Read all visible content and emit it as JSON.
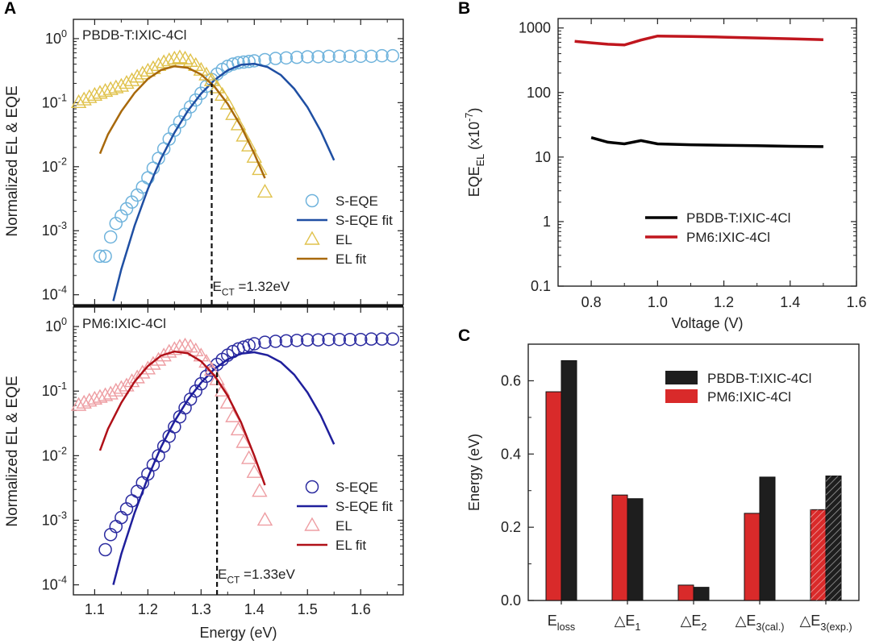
{
  "chart_data": [
    {
      "panel": "A (top)",
      "panel_letter": "A",
      "type": "scatter",
      "title": "PBDB-T:IXIC-4Cl",
      "xlabel": "",
      "ylabel": "Normalized EL & EQE",
      "yscale": "log",
      "xlim": [
        1.06,
        1.68
      ],
      "ylim": [
        7e-05,
        2
      ],
      "yticks": [
        0.0001,
        0.001,
        0.01,
        0.1,
        1
      ],
      "ytick_labels": [
        [
          "10",
          "-4"
        ],
        [
          "10",
          "-3"
        ],
        [
          "10",
          "-2"
        ],
        [
          "10",
          "-1"
        ],
        [
          "10",
          "0"
        ]
      ],
      "ect_value": 1.32,
      "ect_label": [
        "E",
        "CT",
        " =1.32eV"
      ],
      "legend_position": "bottom-right",
      "series": [
        {
          "name": "S-EQE",
          "kind": "markers-circle",
          "color": "#6fb3dc",
          "x": [
            1.11,
            1.12,
            1.13,
            1.14,
            1.15,
            1.16,
            1.17,
            1.18,
            1.19,
            1.2,
            1.21,
            1.22,
            1.23,
            1.24,
            1.25,
            1.26,
            1.27,
            1.28,
            1.29,
            1.3,
            1.31,
            1.32,
            1.33,
            1.34,
            1.35,
            1.36,
            1.37,
            1.38,
            1.39,
            1.4,
            1.42,
            1.44,
            1.46,
            1.48,
            1.5,
            1.52,
            1.54,
            1.56,
            1.58,
            1.6,
            1.62,
            1.64,
            1.66
          ],
          "y": [
            0.0004,
            0.0004,
            0.0008,
            0.0013,
            0.0017,
            0.0022,
            0.0028,
            0.0036,
            0.0048,
            0.0067,
            0.0095,
            0.0135,
            0.019,
            0.027,
            0.037,
            0.05,
            0.066,
            0.086,
            0.11,
            0.14,
            0.18,
            0.23,
            0.28,
            0.33,
            0.37,
            0.4,
            0.42,
            0.43,
            0.44,
            0.45,
            0.47,
            0.49,
            0.5,
            0.51,
            0.52,
            0.52,
            0.53,
            0.53,
            0.53,
            0.53,
            0.53,
            0.54,
            0.54
          ]
        },
        {
          "name": "S-EQE fit",
          "kind": "line",
          "color": "#1f4fa3",
          "x": [
            1.135,
            1.15,
            1.175,
            1.2,
            1.225,
            1.25,
            1.275,
            1.3,
            1.325,
            1.35,
            1.375,
            1.4,
            1.425,
            1.45,
            1.475,
            1.5,
            1.525,
            1.55
          ],
          "y": [
            8e-05,
            0.00025,
            0.0012,
            0.0045,
            0.0135,
            0.034,
            0.074,
            0.138,
            0.225,
            0.32,
            0.39,
            0.405,
            0.36,
            0.27,
            0.165,
            0.085,
            0.036,
            0.0126
          ]
        },
        {
          "name": "EL",
          "kind": "markers-triangle",
          "color": "#e0c24c",
          "x": [
            1.07,
            1.08,
            1.09,
            1.1,
            1.11,
            1.12,
            1.13,
            1.14,
            1.15,
            1.16,
            1.17,
            1.18,
            1.19,
            1.2,
            1.21,
            1.22,
            1.23,
            1.24,
            1.25,
            1.26,
            1.27,
            1.28,
            1.29,
            1.3,
            1.31,
            1.32,
            1.33,
            1.34,
            1.35,
            1.36,
            1.37,
            1.38,
            1.39,
            1.4,
            1.41,
            1.42
          ],
          "y": [
            0.1,
            0.11,
            0.12,
            0.13,
            0.14,
            0.15,
            0.16,
            0.17,
            0.18,
            0.2,
            0.22,
            0.25,
            0.28,
            0.31,
            0.34,
            0.38,
            0.42,
            0.45,
            0.48,
            0.5,
            0.48,
            0.44,
            0.38,
            0.32,
            0.27,
            0.22,
            0.17,
            0.13,
            0.095,
            0.065,
            0.045,
            0.03,
            0.021,
            0.014,
            0.009,
            0.004
          ]
        },
        {
          "name": "EL fit",
          "kind": "line",
          "color": "#a8690c",
          "x": [
            1.11,
            1.125,
            1.15,
            1.175,
            1.2,
            1.225,
            1.25,
            1.275,
            1.3,
            1.325,
            1.35,
            1.375,
            1.4,
            1.42
          ],
          "y": [
            0.016,
            0.032,
            0.073,
            0.142,
            0.235,
            0.324,
            0.37,
            0.35,
            0.276,
            0.179,
            0.096,
            0.043,
            0.016,
            0.0066
          ]
        }
      ]
    },
    {
      "panel": "A (bottom)",
      "type": "scatter",
      "title": "PM6:IXIC-4Cl",
      "xlabel": "Energy (eV)",
      "ylabel": "Normalized EL & EQE",
      "yscale": "log",
      "xlim": [
        1.06,
        1.68
      ],
      "ylim": [
        7e-05,
        2
      ],
      "xticks": [
        1.1,
        1.2,
        1.3,
        1.4,
        1.5,
        1.6
      ],
      "xtick_labels": [
        "1.1",
        "1.2",
        "1.3",
        "1.4",
        "1.5",
        "1.6"
      ],
      "yticks": [
        0.0001,
        0.001,
        0.01,
        0.1,
        1
      ],
      "ytick_labels": [
        [
          "10",
          "-4"
        ],
        [
          "10",
          "-3"
        ],
        [
          "10",
          "-2"
        ],
        [
          "10",
          "-1"
        ],
        [
          "10",
          "0"
        ]
      ],
      "ect_value": 1.33,
      "ect_label": [
        "E",
        "CT",
        " =1.33eV"
      ],
      "legend_position": "bottom-right",
      "series": [
        {
          "name": "S-EQE",
          "kind": "markers-circle",
          "color": "#2c2ca0",
          "x": [
            1.12,
            1.13,
            1.14,
            1.15,
            1.16,
            1.17,
            1.18,
            1.19,
            1.2,
            1.21,
            1.22,
            1.23,
            1.24,
            1.25,
            1.26,
            1.27,
            1.28,
            1.29,
            1.3,
            1.31,
            1.32,
            1.33,
            1.34,
            1.35,
            1.36,
            1.37,
            1.38,
            1.39,
            1.4,
            1.42,
            1.44,
            1.46,
            1.48,
            1.5,
            1.52,
            1.54,
            1.56,
            1.58,
            1.6,
            1.62,
            1.64,
            1.66
          ],
          "y": [
            0.00035,
            0.0006,
            0.0008,
            0.0011,
            0.0015,
            0.002,
            0.0028,
            0.0038,
            0.0052,
            0.0072,
            0.01,
            0.014,
            0.02,
            0.028,
            0.04,
            0.055,
            0.075,
            0.1,
            0.13,
            0.17,
            0.21,
            0.26,
            0.31,
            0.36,
            0.41,
            0.45,
            0.48,
            0.51,
            0.54,
            0.57,
            0.59,
            0.6,
            0.61,
            0.62,
            0.62,
            0.63,
            0.63,
            0.63,
            0.63,
            0.64,
            0.64,
            0.64
          ]
        },
        {
          "name": "S-EQE fit",
          "kind": "line",
          "color": "#1f1f9c",
          "x": [
            1.135,
            1.15,
            1.175,
            1.2,
            1.225,
            1.25,
            1.275,
            1.3,
            1.325,
            1.35,
            1.375,
            1.4,
            1.425,
            1.45,
            1.475,
            1.5,
            1.525,
            1.55
          ],
          "y": [
            0.0001,
            0.0003,
            0.0013,
            0.0046,
            0.0137,
            0.034,
            0.073,
            0.135,
            0.22,
            0.31,
            0.38,
            0.4,
            0.36,
            0.28,
            0.18,
            0.095,
            0.042,
            0.015
          ]
        },
        {
          "name": "EL",
          "kind": "markers-triangle",
          "color": "#ee9ea3",
          "x": [
            1.07,
            1.08,
            1.09,
            1.1,
            1.11,
            1.12,
            1.13,
            1.14,
            1.15,
            1.16,
            1.17,
            1.18,
            1.19,
            1.2,
            1.21,
            1.22,
            1.23,
            1.24,
            1.25,
            1.26,
            1.27,
            1.28,
            1.29,
            1.3,
            1.31,
            1.32,
            1.33,
            1.34,
            1.35,
            1.36,
            1.37,
            1.38,
            1.39,
            1.4,
            1.41,
            1.42
          ],
          "y": [
            0.06,
            0.065,
            0.07,
            0.075,
            0.08,
            0.085,
            0.09,
            0.1,
            0.11,
            0.12,
            0.14,
            0.16,
            0.19,
            0.22,
            0.26,
            0.3,
            0.35,
            0.4,
            0.44,
            0.48,
            0.5,
            0.48,
            0.42,
            0.35,
            0.28,
            0.21,
            0.15,
            0.1,
            0.065,
            0.04,
            0.025,
            0.016,
            0.009,
            0.0055,
            0.0028,
            0.001
          ]
        },
        {
          "name": "EL fit",
          "kind": "line",
          "color": "#b01018",
          "x": [
            1.11,
            1.125,
            1.15,
            1.175,
            1.2,
            1.225,
            1.25,
            1.275,
            1.3,
            1.325,
            1.35,
            1.375,
            1.4,
            1.42
          ],
          "y": [
            0.012,
            0.026,
            0.066,
            0.14,
            0.245,
            0.355,
            0.41,
            0.385,
            0.29,
            0.175,
            0.085,
            0.033,
            0.01,
            0.0035
          ]
        }
      ]
    },
    {
      "panel": "B",
      "panel_letter": "B",
      "type": "line",
      "xlabel": "Voltage (V)",
      "ylabel_parts": [
        "EQE",
        "EL",
        " (x10",
        "-7",
        ")"
      ],
      "yscale": "log",
      "xlim": [
        0.7,
        1.6
      ],
      "ylim": [
        0.1,
        1400
      ],
      "xticks": [
        0.8,
        1.0,
        1.2,
        1.4,
        1.6
      ],
      "xtick_labels": [
        "0.8",
        "1.0",
        "1.2",
        "1.4",
        "1.6"
      ],
      "yticks": [
        0.1,
        1,
        10,
        100,
        1000
      ],
      "ytick_labels": [
        "0.1",
        "1",
        "10",
        "100",
        "1000"
      ],
      "legend_position": "lower-middle",
      "series": [
        {
          "name": "PBDB-T:IXIC-4Cl",
          "color": "#000000",
          "x": [
            0.8,
            0.85,
            0.9,
            0.95,
            1.0,
            1.1,
            1.2,
            1.3,
            1.4,
            1.5
          ],
          "y": [
            20,
            17,
            16,
            18,
            16,
            15.5,
            15.2,
            15,
            14.7,
            14.5
          ]
        },
        {
          "name": "PM6:IXIC-4Cl",
          "color": "#c0161e",
          "x": [
            0.75,
            0.8,
            0.85,
            0.9,
            0.95,
            1.0,
            1.1,
            1.2,
            1.3,
            1.4,
            1.5
          ],
          "y": [
            620,
            590,
            560,
            545,
            650,
            750,
            740,
            720,
            700,
            680,
            660
          ]
        }
      ]
    },
    {
      "panel": "C",
      "panel_letter": "C",
      "type": "bar",
      "xlabel": "",
      "ylabel": "Energy (eV)",
      "ylim": [
        0,
        0.7
      ],
      "yticks": [
        0.0,
        0.2,
        0.4,
        0.6
      ],
      "ytick_labels": [
        "0.0",
        "0.2",
        "0.4",
        "0.6"
      ],
      "categories": [
        [
          "E",
          "loss"
        ],
        [
          "△E",
          "1"
        ],
        [
          "△E",
          "2"
        ],
        [
          "△E",
          "3(cal.)"
        ],
        [
          "△E",
          "3(exp.)"
        ]
      ],
      "hatched_category_index": 4,
      "legend_position": "top-right",
      "series": [
        {
          "name": "PBDB-T:IXIC-4Cl",
          "color": "#1e1e1e",
          "values": [
            0.655,
            0.278,
            0.036,
            0.337,
            0.34
          ]
        },
        {
          "name": "PM6:IXIC-4Cl",
          "color": "#d92a2a",
          "values": [
            0.57,
            0.288,
            0.042,
            0.238,
            0.248
          ]
        }
      ]
    }
  ]
}
